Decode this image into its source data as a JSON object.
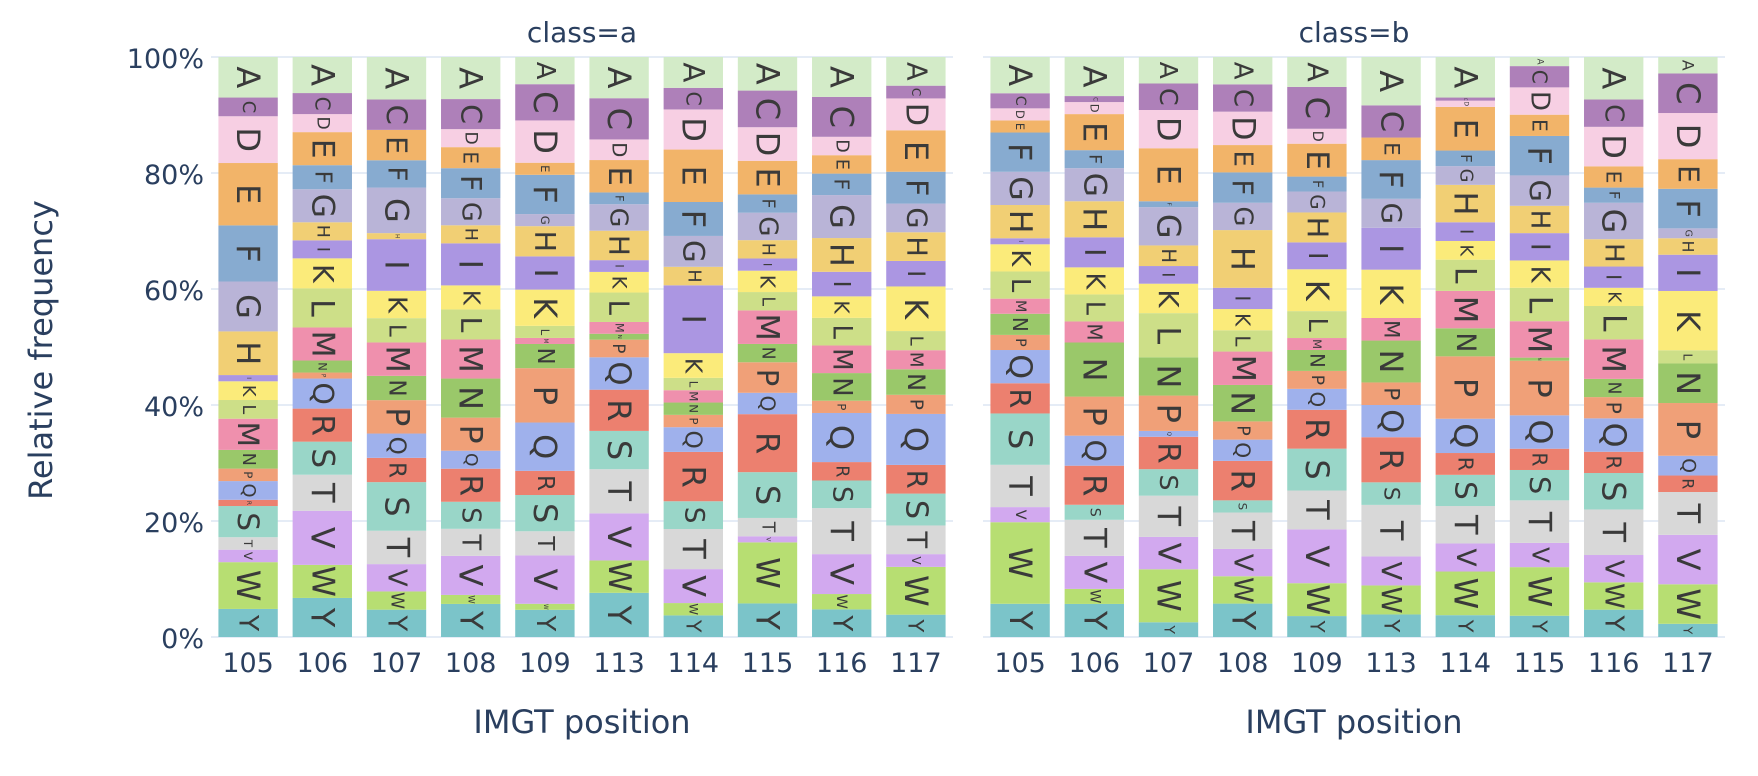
{
  "chart_data": {
    "type": "stacked-bar",
    "ylabel": "Relative frequency",
    "y_ticks": [
      "0%",
      "20%",
      "40%",
      "60%",
      "80%",
      "100%"
    ],
    "ylim": [
      0,
      100
    ],
    "grid": true,
    "legend": "none",
    "letter_order": [
      "Y",
      "W",
      "V",
      "T",
      "S",
      "R",
      "Q",
      "P",
      "N",
      "M",
      "L",
      "K",
      "I",
      "H",
      "G",
      "F",
      "E",
      "D",
      "C",
      "A"
    ],
    "colors": {
      "A": "#d3ebc8",
      "C": "#ae80b9",
      "D": "#f7cfe3",
      "E": "#f2b469",
      "F": "#87abd0",
      "G": "#b9b4d7",
      "H": "#f1cf74",
      "I": "#ab96e2",
      "K": "#fbeb7a",
      "L": "#cddf88",
      "M": "#ef90ad",
      "N": "#9ac86a",
      "P": "#f0a078",
      "Q": "#9fb1ec",
      "R": "#ec806f",
      "S": "#99d6c8",
      "T": "#d8d8d8",
      "V": "#d2a9ef",
      "W": "#b7de72",
      "Y": "#7bc4c9"
    },
    "panels": [
      {
        "title": "class=a",
        "xlabel": "IMGT position",
        "categories": [
          "105",
          "106",
          "107",
          "108",
          "109",
          "113",
          "114",
          "115",
          "116",
          "117"
        ],
        "bars": [
          {
            "Y": 4.5,
            "W": 7.5,
            "V": 2,
            "T": 2,
            "S": 5,
            "R": 1,
            "Q": 3,
            "P": 2,
            "N": 3,
            "M": 5,
            "L": 3,
            "K": 3,
            "I": 1,
            "H": 7,
            "G": 8,
            "F": 9,
            "E": 10,
            "D": 7.5,
            "C": 3,
            "A": 6.5
          },
          {
            "Y": 6.5,
            "W": 5.5,
            "V": 9,
            "T": 6,
            "S": 5.5,
            "R": 5.5,
            "Q": 5,
            "P": 1,
            "N": 2,
            "M": 5.5,
            "L": 6.5,
            "K": 5,
            "I": 3,
            "H": 3,
            "G": 5.5,
            "F": 4,
            "E": 5.5,
            "D": 3,
            "C": 3.5,
            "A": 6
          },
          {
            "Y": 4.5,
            "W": 3,
            "V": 4.5,
            "T": 5.5,
            "S": 8,
            "R": 4,
            "Q": 4,
            "P": 5.5,
            "N": 4,
            "M": 5.5,
            "L": 4,
            "K": 4.5,
            "I": 8.5,
            "H": 1,
            "G": 7.5,
            "F": 4.5,
            "E": 5,
            "D": 0,
            "C": 5,
            "A": 7
          },
          {
            "Y": 5.5,
            "W": 1.5,
            "V": 6.5,
            "T": 4.5,
            "S": 4.5,
            "R": 5.5,
            "Q": 3,
            "P": 5.5,
            "N": 6.5,
            "M": 6.5,
            "L": 5,
            "K": 4,
            "I": 7,
            "H": 3,
            "G": 4.5,
            "F": 5,
            "E": 3.5,
            "D": 3,
            "C": 5,
            "A": 7
          },
          {
            "Y": 4.5,
            "W": 1,
            "V": 8,
            "T": 4,
            "S": 6,
            "R": 4,
            "Q": 8,
            "P": 9,
            "N": 4,
            "M": 1,
            "L": 2,
            "K": 6,
            "I": 5.5,
            "H": 5,
            "G": 2,
            "F": 6.5,
            "E": 2,
            "D": 7,
            "C": 6,
            "A": 4.5
          },
          {
            "Y": 7.5,
            "W": 5.5,
            "V": 8,
            "T": 7.5,
            "S": 6.5,
            "R": 7,
            "Q": 5.5,
            "P": 3,
            "N": 1,
            "M": 2,
            "L": 5,
            "K": 3.5,
            "I": 2,
            "H": 5,
            "G": 4.5,
            "F": 2,
            "E": 5.5,
            "D": 3.5,
            "C": 7,
            "A": 7
          },
          {
            "Y": 3.5,
            "W": 2,
            "V": 5.5,
            "T": 6.5,
            "S": 4.5,
            "R": 8,
            "Q": 4,
            "P": 2,
            "N": 2,
            "M": 2,
            "L": 2,
            "K": 4,
            "I": 11,
            "H": 3,
            "G": 5,
            "F": 5.5,
            "E": 8.5,
            "D": 6.5,
            "C": 3.5,
            "A": 5
          },
          {
            "Y": 5.5,
            "W": 10,
            "V": 1,
            "T": 3,
            "S": 7.5,
            "R": 9.5,
            "Q": 3.5,
            "P": 5,
            "N": 3,
            "M": 5.5,
            "L": 3,
            "K": 3.5,
            "I": 2,
            "H": 3,
            "G": 4.5,
            "F": 3,
            "E": 5.5,
            "D": 5.5,
            "C": 6,
            "A": 5.5
          },
          {
            "Y": 4.5,
            "W": 2.5,
            "V": 6.5,
            "T": 7.5,
            "S": 4.5,
            "R": 3,
            "Q": 8,
            "P": 2,
            "N": 4.5,
            "M": 4.5,
            "L": 4.5,
            "K": 3.5,
            "I": 4,
            "H": 5.5,
            "G": 7,
            "F": 3.5,
            "E": 3,
            "D": 3,
            "C": 6.5,
            "A": 6.5
          },
          {
            "Y": 3.5,
            "W": 7.5,
            "V": 2,
            "T": 4.5,
            "S": 5,
            "R": 4.5,
            "Q": 8,
            "P": 3,
            "N": 4,
            "M": 3,
            "L": 3,
            "K": 7,
            "I": 4,
            "H": 4.5,
            "G": 4.5,
            "F": 5,
            "E": 6.5,
            "D": 5,
            "C": 2,
            "A": 4.5
          }
        ]
      },
      {
        "title": "class=b",
        "xlabel": "IMGT position",
        "categories": [
          "105",
          "106",
          "107",
          "108",
          "109",
          "113",
          "114",
          "115",
          "116",
          "117"
        ],
        "bars": [
          {
            "Y": 5.5,
            "W": 13.5,
            "V": 2.5,
            "T": 7,
            "S": 8.5,
            "R": 5,
            "Q": 5.5,
            "P": 2.5,
            "N": 3.5,
            "M": 2.5,
            "L": 4.5,
            "K": 4.5,
            "I": 1,
            "H": 5.5,
            "G": 5.5,
            "F": 6.5,
            "E": 2,
            "D": 2,
            "C": 2.5,
            "A": 6
          },
          {
            "Y": 5.5,
            "W": 2.5,
            "V": 5.5,
            "T": 6,
            "S": 2.5,
            "R": 6.5,
            "Q": 5,
            "P": 6.5,
            "N": 9,
            "M": 3.5,
            "L": 4.5,
            "K": 4.5,
            "I": 5,
            "H": 6,
            "G": 5.5,
            "F": 3,
            "E": 6,
            "D": 2,
            "C": 1,
            "A": 6.5
          },
          {
            "Y": 2.5,
            "W": 9,
            "V": 5.5,
            "T": 7,
            "S": 4.5,
            "R": 5.5,
            "Q": 1,
            "P": 6,
            "N": 6.5,
            "M": 0,
            "L": 7.5,
            "K": 5,
            "I": 3,
            "H": 3.5,
            "G": 6.5,
            "F": 1,
            "E": 9,
            "D": 6.5,
            "C": 4.5,
            "A": 4.5
          },
          {
            "Y": 5.5,
            "W": 4.5,
            "V": 4.5,
            "T": 6,
            "S": 2,
            "R": 6.5,
            "Q": 3.5,
            "P": 3,
            "N": 6,
            "M": 5.5,
            "L": 3.5,
            "K": 3.5,
            "I": 3.5,
            "H": 9.5,
            "G": 4.5,
            "F": 5,
            "E": 4.5,
            "D": 5.5,
            "C": 4.5,
            "A": 4.5
          },
          {
            "Y": 3.5,
            "W": 5.5,
            "V": 9,
            "T": 6.5,
            "S": 7,
            "R": 6.5,
            "Q": 3.5,
            "P": 3,
            "N": 3.5,
            "M": 2,
            "L": 4.5,
            "K": 7,
            "I": 4.5,
            "H": 5,
            "G": 3.5,
            "F": 2.5,
            "E": 5.5,
            "D": 2.5,
            "C": 7,
            "A": 5
          },
          {
            "Y": 3.5,
            "W": 4.5,
            "V": 4.5,
            "T": 8,
            "S": 3.5,
            "R": 7,
            "Q": 5,
            "P": 3.5,
            "N": 6.5,
            "M": 3.5,
            "L": 0,
            "K": 7.5,
            "I": 6.5,
            "H": 0,
            "G": 4.5,
            "F": 6,
            "E": 3.5,
            "D": 0,
            "C": 5,
            "A": 7.5
          },
          {
            "Y": 3.5,
            "W": 7,
            "V": 4.5,
            "T": 6,
            "S": 5,
            "R": 3.5,
            "Q": 5.5,
            "P": 10,
            "N": 4.5,
            "M": 6,
            "L": 5,
            "K": 3,
            "I": 3,
            "H": 6,
            "G": 3,
            "F": 2.5,
            "E": 7,
            "D": 1,
            "C": 0.5,
            "A": 6.5
          },
          {
            "Y": 3.5,
            "W": 8,
            "V": 4,
            "T": 7,
            "S": 5,
            "R": 3.5,
            "Q": 5.5,
            "P": 9,
            "N": 0.5,
            "M": 6,
            "L": 5.5,
            "K": 4.5,
            "I": 4.5,
            "H": 4.5,
            "G": 5,
            "F": 6.5,
            "E": 3.5,
            "D": 4.5,
            "C": 3.5,
            "A": 1.5
          },
          {
            "Y": 4.5,
            "W": 4.5,
            "V": 4.5,
            "T": 7.5,
            "S": 6,
            "R": 3.5,
            "Q": 5.5,
            "P": 3.5,
            "N": 3,
            "M": 6.5,
            "L": 5.5,
            "K": 3,
            "I": 3.5,
            "H": 4.5,
            "G": 6,
            "F": 2.5,
            "E": 3.5,
            "D": 6.5,
            "C": 4.5,
            "A": 7
          },
          {
            "Y": 2,
            "W": 6,
            "V": 7.5,
            "T": 6.5,
            "S": 0,
            "R": 2.5,
            "Q": 3,
            "P": 8,
            "N": 6,
            "M": 0,
            "L": 2,
            "K": 9,
            "I": 5.5,
            "H": 2.5,
            "G": 1.5,
            "F": 6,
            "E": 4.5,
            "D": 7,
            "C": 6,
            "A": 2.5
          }
        ]
      }
    ]
  }
}
